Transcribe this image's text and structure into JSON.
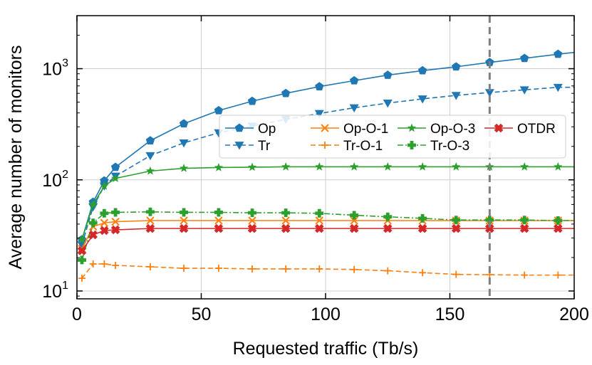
{
  "chart_data": {
    "type": "line",
    "title": "",
    "xlabel": "Requested traffic (Tb/s)",
    "ylabel": "Average number of monitors",
    "xlim": [
      0,
      200
    ],
    "ylim": [
      8.5,
      3000
    ],
    "yscale": "log",
    "grid": true,
    "xticks": [
      0,
      50,
      100,
      150,
      200
    ],
    "xtick_labels": [
      "0",
      "50",
      "100",
      "150",
      "200"
    ],
    "yticks": [
      {
        "value": 10,
        "base": "10",
        "exp": "1"
      },
      {
        "value": 100,
        "base": "10",
        "exp": "2"
      },
      {
        "value": 1000,
        "base": "10",
        "exp": "3"
      }
    ],
    "vline": {
      "x": 166,
      "color": "#808080",
      "style": "dashed"
    },
    "legend_position": "center-right",
    "series": [
      {
        "name": "Op",
        "color": "#1f77b4",
        "dash": "solid",
        "marker": "pentagon",
        "points": [
          [
            2,
            29
          ],
          [
            6.5,
            63
          ],
          [
            11,
            98
          ],
          [
            15.5,
            130
          ],
          [
            29.5,
            225
          ],
          [
            43,
            320
          ],
          [
            57,
            420
          ],
          [
            70.5,
            510
          ],
          [
            84,
            600
          ],
          [
            97.5,
            690
          ],
          [
            111.5,
            780
          ],
          [
            125,
            875
          ],
          [
            139,
            960
          ],
          [
            152.5,
            1040
          ],
          [
            166,
            1140
          ],
          [
            180,
            1240
          ],
          [
            193.5,
            1350
          ],
          [
            200,
            1400
          ]
        ]
      },
      {
        "name": "Tr",
        "color": "#1f77b4",
        "dash": "dashed",
        "marker": "triangle-down",
        "points": [
          [
            2,
            26
          ],
          [
            6.5,
            57
          ],
          [
            11,
            88
          ],
          [
            15.5,
            108
          ],
          [
            29.5,
            165
          ],
          [
            43,
            215
          ],
          [
            57,
            265
          ],
          [
            70.5,
            305
          ],
          [
            84,
            350
          ],
          [
            97.5,
            395
          ],
          [
            111.5,
            445
          ],
          [
            125,
            490
          ],
          [
            139,
            535
          ],
          [
            152.5,
            575
          ],
          [
            166,
            610
          ],
          [
            180,
            645
          ],
          [
            193.5,
            680
          ],
          [
            200,
            680
          ]
        ]
      },
      {
        "name": "Op-O-1",
        "color": "#ff7f0e",
        "dash": "solid",
        "marker": "x",
        "points": [
          [
            2,
            24
          ],
          [
            6.5,
            38
          ],
          [
            11,
            41
          ],
          [
            15.5,
            42
          ],
          [
            29.5,
            43
          ],
          [
            43,
            43
          ],
          [
            57,
            43
          ],
          [
            70.5,
            43
          ],
          [
            84,
            43
          ],
          [
            97.5,
            43
          ],
          [
            111.5,
            43
          ],
          [
            125,
            43
          ],
          [
            139,
            43
          ],
          [
            152.5,
            43
          ],
          [
            166,
            43
          ],
          [
            180,
            43
          ],
          [
            193.5,
            43
          ],
          [
            200,
            43
          ]
        ]
      },
      {
        "name": "Tr-O-1",
        "color": "#ff7f0e",
        "dash": "dashed",
        "marker": "plus",
        "points": [
          [
            2,
            13
          ],
          [
            6.5,
            17.5
          ],
          [
            11,
            17.5
          ],
          [
            15.5,
            17
          ],
          [
            29.5,
            16.5
          ],
          [
            43,
            16
          ],
          [
            57,
            16
          ],
          [
            70.5,
            15.8
          ],
          [
            84,
            15.8
          ],
          [
            97.5,
            15.8
          ],
          [
            111.5,
            15.6
          ],
          [
            125,
            15.2
          ],
          [
            139,
            14.6
          ],
          [
            152.5,
            14.1
          ],
          [
            166,
            14
          ],
          [
            180,
            13.9
          ],
          [
            193.5,
            13.9
          ],
          [
            200,
            13.9
          ]
        ]
      },
      {
        "name": "Op-O-3",
        "color": "#2ca02c",
        "dash": "solid",
        "marker": "star",
        "points": [
          [
            2,
            29
          ],
          [
            6.5,
            60
          ],
          [
            11,
            88
          ],
          [
            15.5,
            103
          ],
          [
            29.5,
            120
          ],
          [
            43,
            127
          ],
          [
            57,
            129
          ],
          [
            70.5,
            130
          ],
          [
            84,
            131
          ],
          [
            97.5,
            131
          ],
          [
            111.5,
            131
          ],
          [
            125,
            131
          ],
          [
            139,
            131
          ],
          [
            152.5,
            131
          ],
          [
            166,
            131
          ],
          [
            180,
            131
          ],
          [
            193.5,
            131
          ],
          [
            200,
            131
          ]
        ]
      },
      {
        "name": "Tr-O-3",
        "color": "#2ca02c",
        "dash": "dashdot",
        "marker": "plus-filled",
        "points": [
          [
            2,
            19
          ],
          [
            6.5,
            41
          ],
          [
            11,
            50
          ],
          [
            15.5,
            51
          ],
          [
            29.5,
            51.5
          ],
          [
            43,
            51
          ],
          [
            57,
            51
          ],
          [
            70.5,
            50.5
          ],
          [
            84,
            50.5
          ],
          [
            97.5,
            50
          ],
          [
            111.5,
            48
          ],
          [
            125,
            46.5
          ],
          [
            139,
            45
          ],
          [
            152.5,
            43.5
          ],
          [
            166,
            43.5
          ],
          [
            180,
            43.5
          ],
          [
            193.5,
            43
          ],
          [
            200,
            43
          ]
        ]
      },
      {
        "name": "OTDR",
        "color": "#d62728",
        "dash": "solid",
        "marker": "x-filled",
        "points": [
          [
            2,
            23
          ],
          [
            6.5,
            32
          ],
          [
            11,
            35
          ],
          [
            15.5,
            35.5
          ],
          [
            29.5,
            36.5
          ],
          [
            43,
            36.5
          ],
          [
            57,
            36.5
          ],
          [
            70.5,
            36.5
          ],
          [
            84,
            36.5
          ],
          [
            97.5,
            36.5
          ],
          [
            111.5,
            36.5
          ],
          [
            125,
            36.5
          ],
          [
            139,
            36.5
          ],
          [
            152.5,
            36.5
          ],
          [
            166,
            36.5
          ],
          [
            180,
            36.5
          ],
          [
            193.5,
            36.5
          ],
          [
            200,
            36.5
          ]
        ]
      }
    ]
  }
}
